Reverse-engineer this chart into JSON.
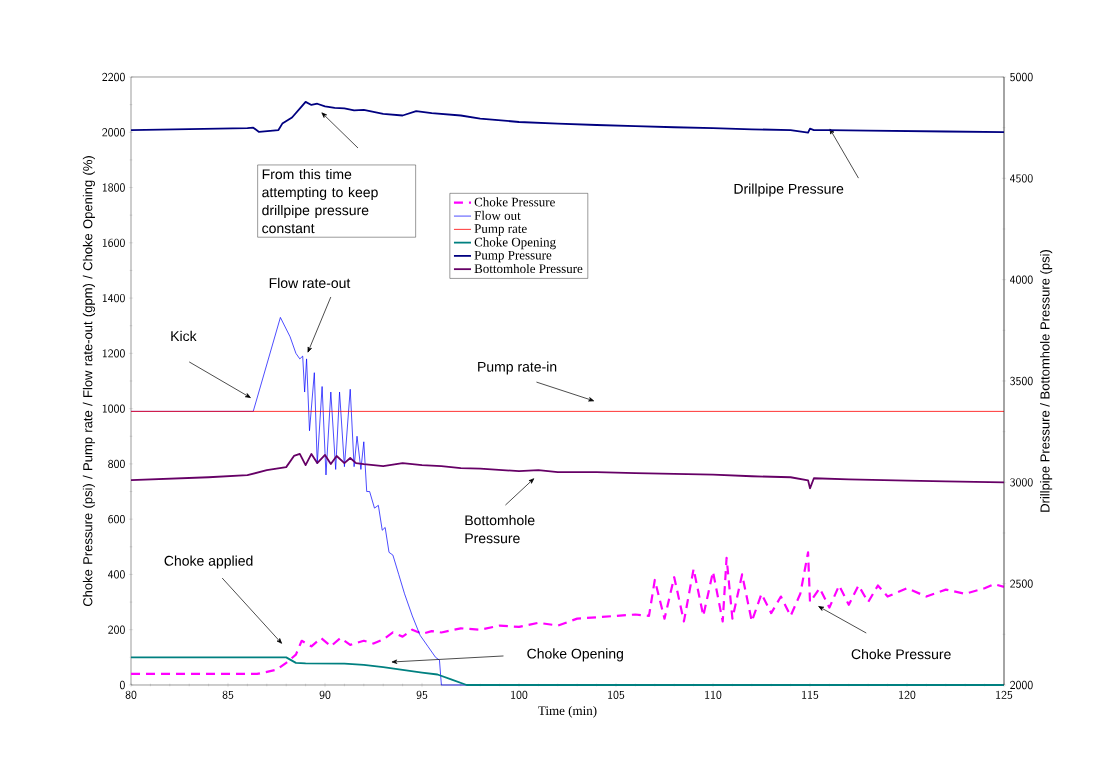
{
  "chart_data": {
    "type": "line",
    "xlabel": "Time (min)",
    "ylabel": "Choke Pressure (psi) / Pump rate / Flow rate-out (gpm) / Choke Opening (%)",
    "y2label": "Drillpipe Pressure / Bottomhole Pressure (psi)",
    "xlim": [
      80,
      125
    ],
    "xticks": [
      80,
      85,
      90,
      95,
      100,
      105,
      110,
      115,
      120,
      125
    ],
    "ylim": [
      0,
      2200
    ],
    "yticks": [
      0,
      200,
      400,
      600,
      800,
      1000,
      1200,
      1400,
      1600,
      1800,
      2000,
      2200
    ],
    "y2lim": [
      2000,
      5000
    ],
    "y2ticks": [
      2000,
      2500,
      3000,
      3500,
      4000,
      4500,
      5000
    ],
    "grid": false,
    "legend": "top",
    "marker": "none",
    "series": [
      {
        "name": "Choke Pressure",
        "color": "#ff00ff",
        "line_style": "dashed",
        "x": [
          80,
          86.5,
          87.5,
          88.0,
          88.5,
          88.8,
          89.3,
          89.8,
          90.3,
          90.8,
          91.3,
          92,
          92.5,
          93,
          93.5,
          94,
          94.5,
          95,
          95.5,
          96,
          97,
          98,
          99,
          100,
          101,
          102,
          103,
          104,
          105,
          106,
          106.7,
          107,
          107.5,
          108,
          108.5,
          109,
          109.5,
          110,
          110.5,
          110.7,
          111,
          111.5,
          112,
          112.5,
          113,
          113.5,
          114,
          114.5,
          114.9,
          115,
          115.5,
          116,
          116.5,
          117,
          117.5,
          118,
          118.5,
          119,
          120,
          121,
          122,
          123,
          124,
          124.5,
          125
        ],
        "values": [
          40,
          40,
          55,
          80,
          110,
          160,
          140,
          170,
          140,
          170,
          145,
          160,
          150,
          165,
          190,
          175,
          200,
          185,
          195,
          190,
          205,
          200,
          215,
          210,
          225,
          215,
          240,
          245,
          250,
          255,
          250,
          380,
          240,
          390,
          230,
          420,
          250,
          410,
          230,
          460,
          240,
          400,
          230,
          330,
          260,
          320,
          250,
          330,
          480,
          300,
          350,
          280,
          360,
          290,
          360,
          300,
          360,
          320,
          350,
          320,
          345,
          330,
          350,
          365,
          355
        ]
      },
      {
        "name": "Flow out",
        "color": "#0000ff",
        "line_style": "solid",
        "x": [
          80,
          86.3,
          87.7,
          88.2,
          88.5,
          88.7,
          88.85,
          88.95,
          89.05,
          89.2,
          89.45,
          89.6,
          89.85,
          90.05,
          90.3,
          90.55,
          90.75,
          91.0,
          91.3,
          91.5,
          91.65,
          91.85,
          92.0,
          92.15,
          92.3,
          92.55,
          92.75,
          92.95,
          93.1,
          93.3,
          93.5,
          93.8,
          94.1,
          94.5,
          94.9,
          95.3,
          95.7,
          95.9,
          96.0,
          125
        ],
        "values": [
          990,
          990,
          1330,
          1260,
          1200,
          1180,
          1190,
          1060,
          1180,
          920,
          1130,
          800,
          1080,
          760,
          1060,
          780,
          1060,
          790,
          1070,
          790,
          900,
          780,
          880,
          700,
          700,
          640,
          650,
          560,
          570,
          480,
          470,
          400,
          330,
          250,
          180,
          140,
          100,
          90,
          0,
          0
        ]
      },
      {
        "name": "Pump rate",
        "color": "#ff0000",
        "line_style": "solid",
        "x": [
          80,
          125
        ],
        "values": [
          990,
          990
        ]
      },
      {
        "name": "Choke Opening",
        "color": "#008080",
        "line_style": "solid",
        "x": [
          80,
          88.0,
          88.5,
          89,
          91,
          92,
          93,
          94,
          95,
          95.8,
          96.5,
          97.3,
          125
        ],
        "values": [
          100,
          100,
          80,
          78,
          77,
          73,
          65,
          55,
          45,
          38,
          20,
          0,
          0
        ]
      },
      {
        "name": "Pump Pressure",
        "color": "#000080",
        "line_style": "solid",
        "axis": "y2",
        "x": [
          80,
          86,
          86.3,
          86.6,
          87.6,
          87.8,
          88.3,
          88.8,
          89.0,
          89.3,
          89.6,
          90,
          90.5,
          91,
          91.5,
          92,
          93,
          94,
          94.7,
          95.5,
          97,
          98,
          100,
          102,
          104,
          106,
          108,
          110,
          112,
          114,
          114.9,
          115,
          115.2,
          116,
          118,
          120,
          122,
          125
        ],
        "values": [
          4738,
          4748,
          4750,
          4729,
          4738,
          4770,
          4800,
          4855,
          4877,
          4862,
          4868,
          4855,
          4848,
          4845,
          4835,
          4838,
          4818,
          4810,
          4832,
          4822,
          4810,
          4795,
          4778,
          4770,
          4763,
          4758,
          4752,
          4748,
          4742,
          4738,
          4725,
          4745,
          4738,
          4738,
          4735,
          4733,
          4731,
          4728
        ]
      },
      {
        "name": "Bottomhole Pressure",
        "color": "#660066",
        "line_style": "solid",
        "axis": "y2",
        "x": [
          80,
          84,
          86,
          87,
          88,
          88.4,
          88.7,
          89,
          89.3,
          89.6,
          90,
          90.3,
          90.6,
          91,
          91.3,
          91.6,
          92,
          93,
          94,
          95,
          96,
          97,
          98,
          100,
          101,
          102,
          104,
          106,
          108,
          110,
          112,
          114,
          114.9,
          115,
          115.2,
          117,
          120,
          122,
          125
        ],
        "values": [
          3011,
          3025,
          3035,
          3060,
          3075,
          3130,
          3140,
          3085,
          3140,
          3095,
          3135,
          3090,
          3130,
          3095,
          3120,
          3095,
          3090,
          3080,
          3095,
          3085,
          3080,
          3070,
          3068,
          3055,
          3060,
          3050,
          3050,
          3045,
          3042,
          3038,
          3030,
          3025,
          3010,
          2970,
          3020,
          3015,
          3008,
          3005,
          3000
        ]
      }
    ],
    "annotations": [
      "From this time attempting to keep drillpipe pressure constant",
      {
        "text": "Drillpipe Pressure",
        "x": 116.0,
        "y": 2015
      },
      "Flow rate-out",
      "Kick",
      "Pump rate-in",
      "Bottomhole Pressure",
      "Choke applied",
      "Choke Opening",
      "Choke Pressure"
    ]
  }
}
